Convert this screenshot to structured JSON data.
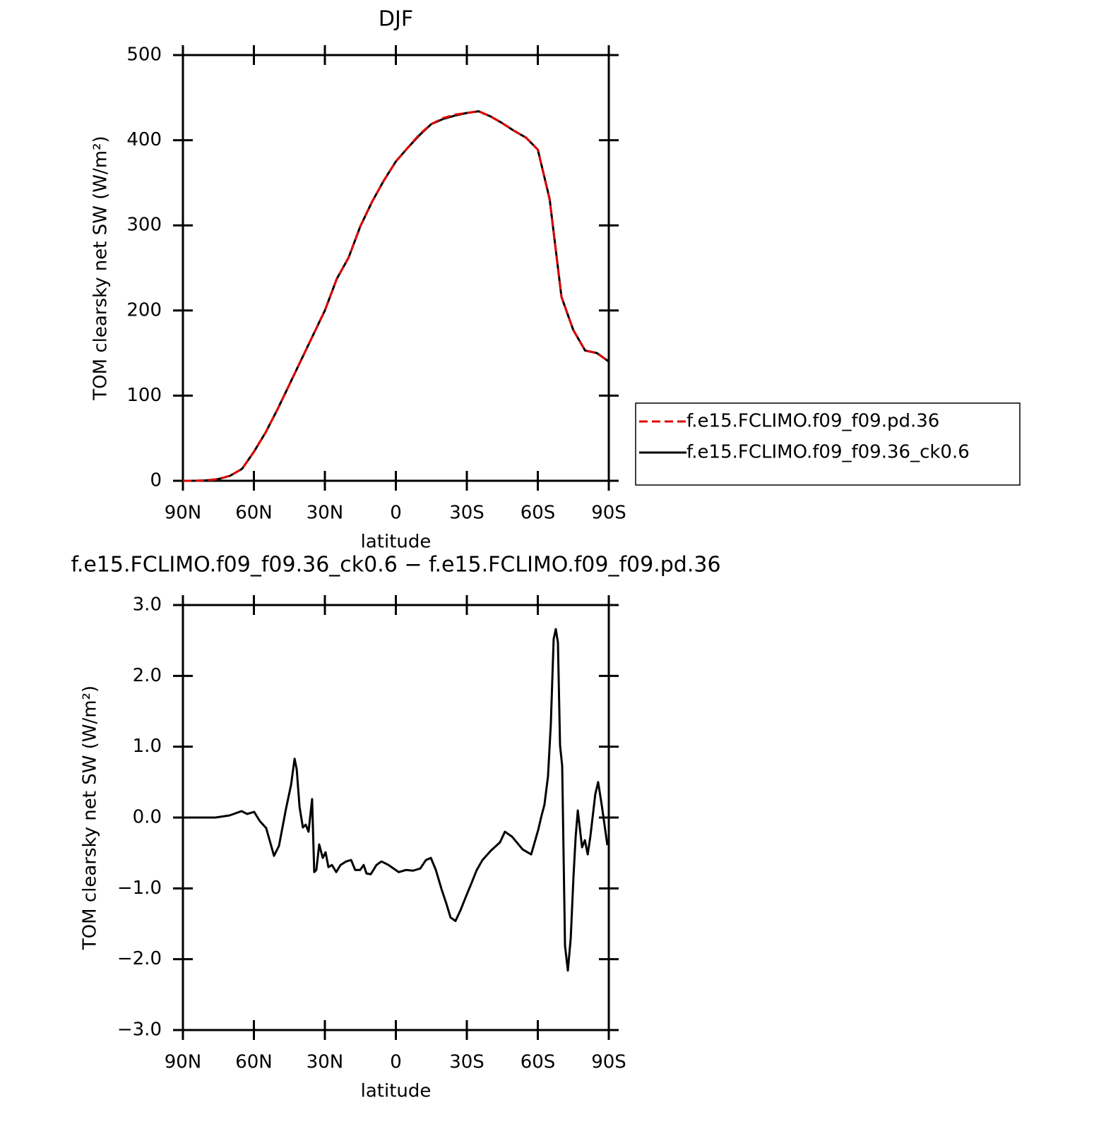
{
  "chart_data": [
    {
      "type": "line",
      "title": "DJF",
      "xlabel": "latitude",
      "ylabel": "TOM clearsky net SW (W/m²)",
      "x": [
        90,
        85,
        80,
        75,
        70,
        65,
        60,
        55,
        50,
        45,
        40,
        35,
        30,
        25,
        20,
        15,
        10,
        5,
        0,
        -5,
        -10,
        -15,
        -20,
        -25,
        -30,
        -35,
        -40,
        -45,
        -50,
        -55,
        -60,
        -65,
        -70,
        -75,
        -80,
        -85,
        -90
      ],
      "series": [
        {
          "name": "f.e15.FCLIMO.f09_f09.pd.36",
          "color": "#e00000",
          "dashed": true,
          "values": [
            0,
            0,
            0.5,
            2,
            6,
            14,
            34,
            57,
            84,
            113,
            142,
            171,
            200,
            237,
            262,
            299,
            328,
            353,
            375,
            391,
            407,
            419,
            426,
            430,
            432,
            434,
            428,
            420,
            411,
            403,
            389,
            330,
            216,
            177,
            153,
            150,
            140
          ]
        },
        {
          "name": "f.e15.FCLIMO.f09_f09.36_ck0.6",
          "color": "#000000",
          "dashed": false,
          "values": [
            0,
            0,
            0.5,
            2,
            6,
            14,
            34,
            57,
            84,
            113,
            142,
            171,
            200,
            237,
            262,
            299,
            328,
            353,
            375,
            391,
            406,
            419,
            425,
            429,
            432,
            434,
            428,
            420,
            411,
            403,
            389,
            331,
            216,
            177,
            153,
            150,
            140
          ]
        }
      ],
      "xlim": [
        90,
        -90
      ],
      "xticks": [
        {
          "value": 90,
          "label": "90N"
        },
        {
          "value": 60,
          "label": "60N"
        },
        {
          "value": 30,
          "label": "30N"
        },
        0,
        {
          "value": -30,
          "label": "30S"
        },
        {
          "value": -60,
          "label": "60S"
        },
        {
          "value": -90,
          "label": "90S"
        }
      ],
      "ylim": [
        0,
        500
      ],
      "yticks": [
        0,
        100,
        200,
        300,
        400,
        500
      ],
      "legend": "right"
    },
    {
      "type": "line",
      "title": "f.e15.FCLIMO.f09_f09.36_ck0.6 − f.e15.FCLIMO.f09_f09.pd.36",
      "xlabel": "latitude",
      "ylabel": "TOM clearsky net SW (W/m²)",
      "x": [
        90,
        76.3,
        70.3,
        65.2,
        62.8,
        59.9,
        57.5,
        54.8,
        51.5,
        49.4,
        46.4,
        44.3,
        42.8,
        41.9,
        40.7,
        39.3,
        38.1,
        36.9,
        35.4,
        34.5,
        33.6,
        32.4,
        30.9,
        29.7,
        28.5,
        27,
        25.2,
        23.4,
        21,
        18.9,
        17.2,
        15.1,
        13.6,
        12.4,
        10.6,
        8.2,
        6.1,
        3.1,
        -1.2,
        -4.3,
        -7.3,
        -10.3,
        -12.7,
        -14.8,
        -16.9,
        -19.3,
        -21.3,
        -23.1,
        -25.2,
        -27.3,
        -29.7,
        -31.8,
        -34.2,
        -36.6,
        -40.1,
        -44,
        -46.1,
        -49.1,
        -53.6,
        -57.2,
        -60.2,
        -61.6,
        -62.8,
        -64.3,
        -65.5,
        -66.7,
        -67.6,
        -68.5,
        -69.4,
        -70.3,
        -71.5,
        -72.7,
        -73.9,
        -75.1,
        -76,
        -76.9,
        -78.7,
        -79.9,
        -81.1,
        -82.2,
        -84.3,
        -85.5,
        -87,
        -89.4
      ],
      "values": [
        0,
        0,
        0.03,
        0.09,
        0.05,
        0.08,
        -0.05,
        -0.15,
        -0.54,
        -0.4,
        0.13,
        0.46,
        0.83,
        0.68,
        0.15,
        -0.14,
        -0.1,
        -0.2,
        0.26,
        -0.77,
        -0.74,
        -0.38,
        -0.57,
        -0.49,
        -0.7,
        -0.67,
        -0.77,
        -0.67,
        -0.62,
        -0.6,
        -0.74,
        -0.74,
        -0.67,
        -0.79,
        -0.8,
        -0.67,
        -0.62,
        -0.67,
        -0.77,
        -0.74,
        -0.75,
        -0.72,
        -0.6,
        -0.57,
        -0.74,
        -1.01,
        -1.21,
        -1.41,
        -1.46,
        -1.31,
        -1.11,
        -0.94,
        -0.74,
        -0.6,
        -0.47,
        -0.35,
        -0.2,
        -0.27,
        -0.45,
        -0.52,
        -0.17,
        0.03,
        0.18,
        0.58,
        1.32,
        2.52,
        2.66,
        2.47,
        1.02,
        0.73,
        -1.81,
        -2.16,
        -1.71,
        -0.82,
        -0.27,
        0.1,
        -0.42,
        -0.32,
        -0.52,
        -0.27,
        0.33,
        0.5,
        0.18,
        -0.39
      ],
      "color": "#000000",
      "xlim": [
        90,
        -90
      ],
      "xticks": [
        {
          "value": 90,
          "label": "90N"
        },
        {
          "value": 60,
          "label": "60N"
        },
        {
          "value": 30,
          "label": "30N"
        },
        0,
        {
          "value": -30,
          "label": "30S"
        },
        {
          "value": -60,
          "label": "60S"
        },
        {
          "value": -90,
          "label": "90S"
        }
      ],
      "ylim": [
        -3,
        3
      ],
      "yticks": [
        {
          "value": -3,
          "label": "−3.0"
        },
        {
          "value": -2,
          "label": "−2.0"
        },
        {
          "value": -1,
          "label": "−1.0"
        },
        {
          "value": 0,
          "label": "0.0"
        },
        {
          "value": 1,
          "label": "1.0"
        },
        {
          "value": 2,
          "label": "2.0"
        },
        {
          "value": 3,
          "label": "3.0"
        }
      ]
    }
  ]
}
